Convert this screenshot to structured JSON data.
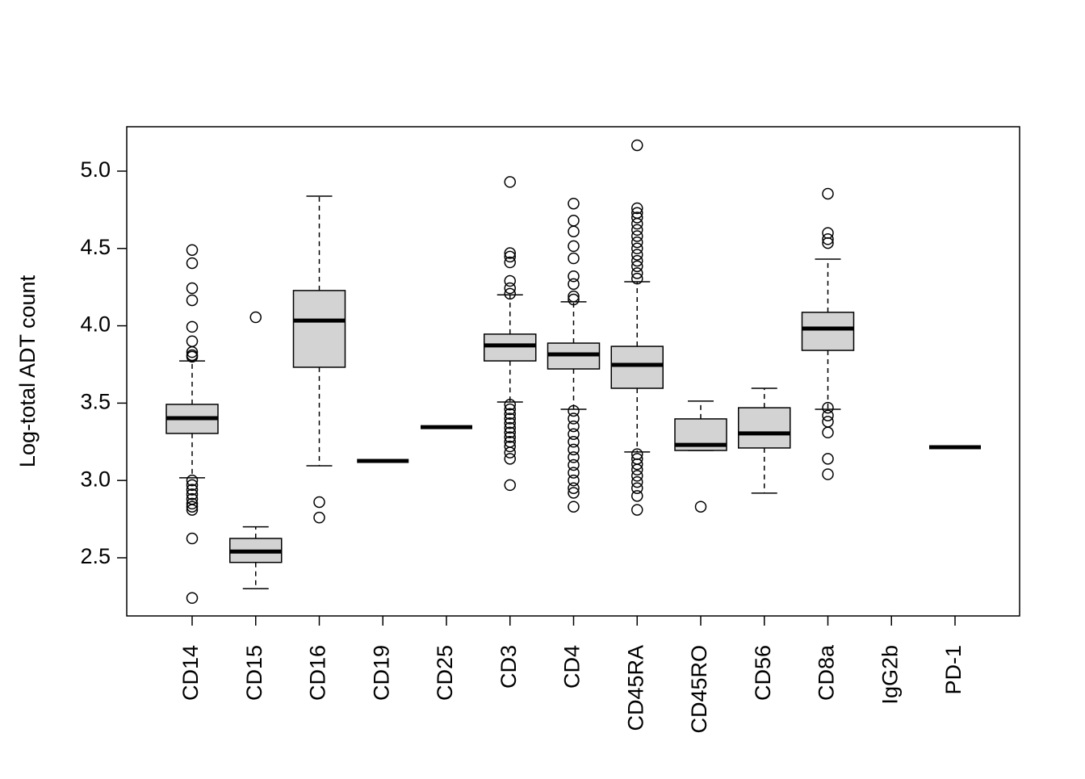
{
  "chart_data": {
    "type": "boxplot",
    "y_label": "Log-total ADT count",
    "categories": [
      "CD14",
      "CD15",
      "CD16",
      "CD19",
      "CD25",
      "CD3",
      "CD4",
      "CD45RA",
      "CD45RO",
      "CD56",
      "CD8a",
      "IgG2b",
      "PD-1"
    ],
    "stats": [
      [
        3.017,
        3.304,
        3.403,
        3.492,
        3.773
      ],
      [
        2.3,
        2.47,
        2.54,
        2.625,
        2.7
      ],
      [
        3.095,
        3.732,
        4.034,
        4.228,
        4.838
      ],
      [
        3.126,
        3.126,
        3.126,
        3.126,
        3.126
      ],
      [
        3.345,
        3.345,
        3.345,
        3.345,
        3.345
      ],
      [
        3.507,
        3.773,
        3.873,
        3.946,
        4.2
      ],
      [
        3.46,
        3.721,
        3.815,
        3.888,
        4.155
      ],
      [
        3.184,
        3.596,
        3.747,
        3.867,
        4.285
      ],
      [
        3.194,
        3.194,
        3.23,
        3.398,
        3.513
      ],
      [
        2.918,
        3.21,
        3.304,
        3.47,
        3.596
      ],
      [
        3.46,
        3.841,
        3.982,
        4.087,
        4.431
      ],
      null,
      [
        3.215,
        3.215,
        3.215,
        3.215,
        3.215
      ]
    ],
    "outliers": [
      [
        4.49,
        4.405,
        4.243,
        4.165,
        3.993,
        3.9,
        3.83,
        3.81,
        3.8,
        3.0,
        2.97,
        2.94,
        2.91,
        2.88,
        2.85,
        2.83,
        2.81,
        2.625,
        2.24
      ],
      [
        4.055
      ],
      [
        2.86,
        2.76
      ],
      [],
      [],
      [
        4.93,
        4.47,
        4.447,
        4.41,
        4.29,
        4.243,
        4.207,
        3.49,
        3.46,
        3.43,
        3.4,
        3.37,
        3.34,
        3.31,
        3.28,
        3.25,
        3.22,
        3.18,
        3.14,
        2.97
      ],
      [
        4.79,
        4.68,
        4.61,
        4.515,
        4.436,
        4.32,
        4.27,
        4.19,
        4.17,
        3.45,
        3.4,
        3.35,
        3.3,
        3.25,
        3.2,
        3.15,
        3.1,
        3.05,
        3.0,
        2.95,
        2.92,
        2.83
      ],
      [
        5.167,
        4.76,
        4.73,
        4.7,
        4.66,
        4.62,
        4.58,
        4.54,
        4.5,
        4.46,
        4.42,
        4.385,
        4.34,
        4.305,
        3.17,
        3.14,
        3.105,
        3.07,
        3.03,
        2.99,
        2.95,
        2.9,
        2.81
      ],
      [
        2.83
      ],
      [],
      [
        4.854,
        4.6,
        4.56,
        4.535,
        3.47,
        3.42,
        3.38,
        3.31,
        3.14,
        3.04
      ],
      [],
      []
    ],
    "box_color": "#d3d3d3",
    "ylim": [
      2.124,
      5.287
    ],
    "yticks": [
      {
        "value": 2.5,
        "label": "2.5"
      },
      {
        "value": 3,
        "label": "3.0"
      },
      3.5,
      {
        "value": 4,
        "label": "4.0"
      },
      4.5,
      {
        "value": 5,
        "label": "5.0"
      }
    ]
  }
}
